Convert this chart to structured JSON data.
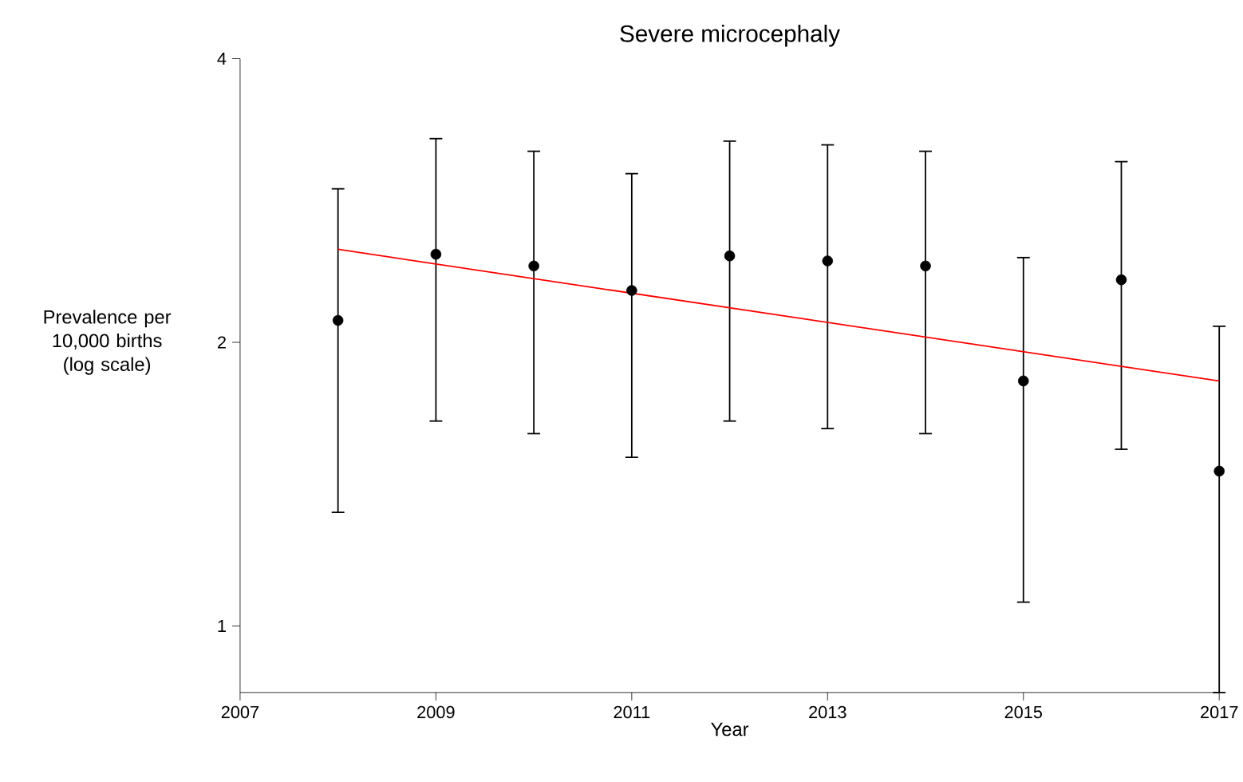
{
  "chart_data": {
    "type": "scatter",
    "title": "Severe microcephaly",
    "xlabel": "Year",
    "ylabel": "Prevalence per 10,000 births (log scale)",
    "log": "y",
    "xlim": [
      2007,
      2017
    ],
    "xticks": [
      2007,
      2009,
      2011,
      2013,
      2015,
      2017
    ],
    "ylim": [
      0.85,
      4
    ],
    "yticks": [
      1,
      2,
      4
    ],
    "series": [
      {
        "color": "#000000",
        "marker": "circle",
        "x": [
          2008,
          2009,
          2010,
          2011,
          2012,
          2013,
          2014,
          2015,
          2016,
          2017
        ],
        "values": [
          2.11,
          2.48,
          2.41,
          2.27,
          2.47,
          2.44,
          2.41,
          1.82,
          2.33,
          1.46
        ],
        "errors": [
          [
            1.32,
            2.91
          ],
          [
            1.65,
            3.29
          ],
          [
            1.6,
            3.19
          ],
          [
            1.51,
            3.02
          ],
          [
            1.65,
            3.27
          ],
          [
            1.62,
            3.24
          ],
          [
            1.6,
            3.19
          ],
          [
            1.06,
            2.46
          ],
          [
            1.54,
            3.11
          ],
          [
            0.85,
            2.08
          ]
        ]
      },
      {
        "type": "line",
        "color": "#ff0000",
        "x": [
          2008,
          2017
        ],
        "values": [
          2.51,
          1.82
        ],
        "marker": "none"
      }
    ]
  }
}
